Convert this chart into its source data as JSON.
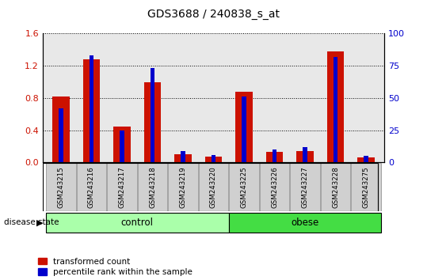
{
  "title": "GDS3688 / 240838_s_at",
  "samples": [
    "GSM243215",
    "GSM243216",
    "GSM243217",
    "GSM243218",
    "GSM243219",
    "GSM243220",
    "GSM243225",
    "GSM243226",
    "GSM243227",
    "GSM243228",
    "GSM243275"
  ],
  "transformed_count": [
    0.82,
    1.28,
    0.45,
    1.0,
    0.1,
    0.07,
    0.88,
    0.13,
    0.14,
    1.38,
    0.06
  ],
  "percentile_rank_pct": [
    42,
    83,
    25,
    73,
    9,
    6,
    51,
    10,
    12,
    82,
    5
  ],
  "groups": [
    {
      "label": "control",
      "start": 0,
      "end": 5,
      "color": "#aaffaa"
    },
    {
      "label": "obese",
      "start": 6,
      "end": 10,
      "color": "#44dd44"
    }
  ],
  "bar_color_red": "#cc1100",
  "bar_color_blue": "#0000cc",
  "red_bar_width": 0.55,
  "blue_bar_width": 0.15,
  "ylim_left": [
    0,
    1.6
  ],
  "ylim_right": [
    0,
    100
  ],
  "yticks_left": [
    0,
    0.4,
    0.8,
    1.2,
    1.6
  ],
  "yticks_right": [
    0,
    25,
    50,
    75,
    100
  ],
  "disease_state_label": "disease state",
  "legend_red": "transformed count",
  "legend_blue": "percentile rank within the sample",
  "plot_bg": "#e8e8e8",
  "sample_box_bg": "#d0d0d0"
}
